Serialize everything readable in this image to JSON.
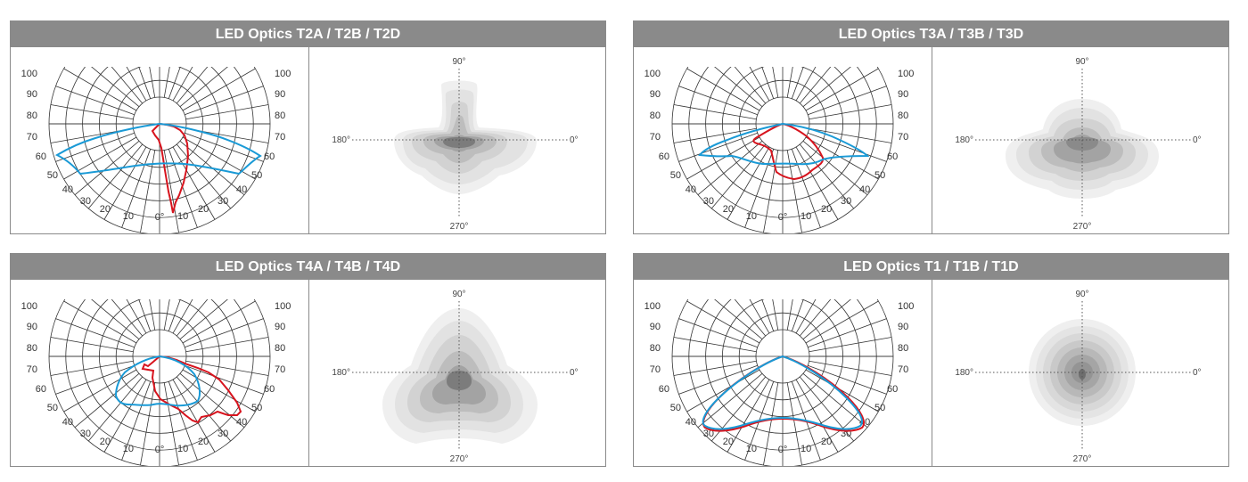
{
  "panels": [
    {
      "title": "LED Optics T2A / T2B / T2D",
      "polar_scale_labels": [
        "100",
        "90",
        "80",
        "70",
        "60",
        "50",
        "40",
        "30",
        "20",
        "10",
        "0°",
        "10",
        "20",
        "30",
        "40",
        "50",
        "60",
        "70",
        "80",
        "90",
        "100"
      ],
      "iso_labels": {
        "top": "90°",
        "left": "180°",
        "right": "0°",
        "bottom": "270°"
      }
    },
    {
      "title": "LED Optics T3A / T3B / T3D",
      "polar_scale_labels": [
        "100",
        "90",
        "80",
        "70",
        "60",
        "50",
        "40",
        "30",
        "20",
        "10",
        "0°",
        "10",
        "20",
        "30",
        "40",
        "50",
        "60",
        "70",
        "80",
        "90",
        "100"
      ],
      "iso_labels": {
        "top": "90°",
        "left": "180°",
        "right": "0°",
        "bottom": "270°"
      }
    },
    {
      "title": "LED Optics T4A / T4B / T4D",
      "polar_scale_labels": [
        "100",
        "90",
        "80",
        "70",
        "60",
        "50",
        "40",
        "30",
        "20",
        "10",
        "0°",
        "10",
        "20",
        "30",
        "40",
        "50",
        "60",
        "70",
        "80",
        "90",
        "100"
      ],
      "iso_labels": {
        "top": "90°",
        "left": "180°",
        "right": "0°",
        "bottom": "270°"
      }
    },
    {
      "title": "LED Optics T1 / T1B / T1D",
      "polar_scale_labels": [
        "100",
        "90",
        "80",
        "70",
        "60",
        "50",
        "40",
        "30",
        "20",
        "10",
        "0°",
        "10",
        "20",
        "30",
        "40",
        "50",
        "60",
        "70",
        "80",
        "90",
        "100"
      ],
      "iso_labels": {
        "top": "90°",
        "left": "180°",
        "right": "0°",
        "bottom": "270°"
      }
    }
  ],
  "colors": {
    "header_bg": "#8a8a8a",
    "red_curve": "#d7141e",
    "blue_curve": "#1a9ad6"
  }
}
